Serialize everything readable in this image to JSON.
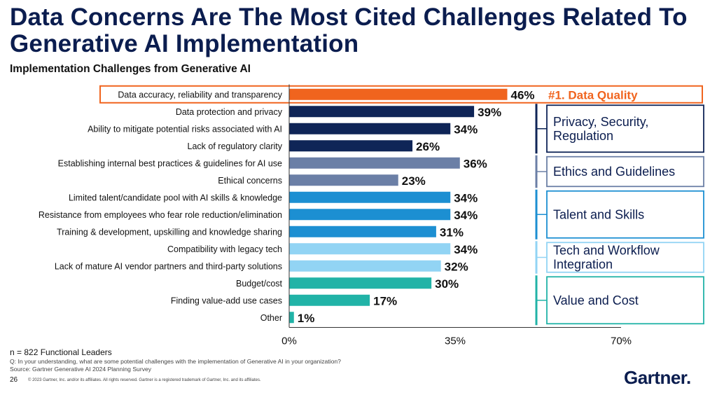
{
  "title": "Data Concerns Are The Most Cited Challenges Related To Generative AI Implementation",
  "subtitle": "Implementation Challenges from Generative AI",
  "chart_data": {
    "type": "bar",
    "orientation": "horizontal",
    "categories": [
      "Data accuracy, reliability and transparency",
      "Data protection and privacy",
      "Ability to mitigate potential risks associated with AI",
      "Lack of regulatory clarity",
      "Establishing internal best practices & guidelines for AI use",
      "Ethical concerns",
      "Limited talent/candidate pool with AI skills & knowledge",
      "Resistance from employees who fear role reduction/elimination",
      "Training & development, upskilling and knowledge sharing",
      "Compatibility with legacy tech",
      "Lack of mature AI vendor partners and third-party solutions",
      "Budget/cost",
      "Finding value-add use cases",
      "Other"
    ],
    "values": [
      46,
      39,
      34,
      26,
      36,
      23,
      34,
      34,
      31,
      34,
      32,
      30,
      17,
      1
    ],
    "value_labels": [
      "46%",
      "39%",
      "34%",
      "26%",
      "36%",
      "23%",
      "34%",
      "34%",
      "31%",
      "34%",
      "32%",
      "30%",
      "17%",
      "1%"
    ],
    "groups": [
      {
        "name": "#1. Data Quality",
        "color": "#f0641e",
        "rows": [
          0
        ]
      },
      {
        "name": "Privacy, Security, Regulation",
        "color": "#0f2557",
        "rows": [
          1,
          2,
          3
        ]
      },
      {
        "name": "Ethics and Guidelines",
        "color": "#6b7fa6",
        "rows": [
          4,
          5
        ]
      },
      {
        "name": "Talent and Skills",
        "color": "#1c8fd2",
        "rows": [
          6,
          7,
          8
        ]
      },
      {
        "name": "Tech and Workflow Integration",
        "color": "#92d4f4",
        "rows": [
          9,
          10
        ]
      },
      {
        "name": "Value and Cost",
        "color": "#21b3a7",
        "rows": [
          11,
          12,
          13
        ]
      }
    ],
    "xlim": [
      0,
      70
    ],
    "xticks": [
      0,
      35,
      70
    ],
    "xtick_labels": [
      "0%",
      "35%",
      "70%"
    ],
    "highlight_label": "#1. Data Quality"
  },
  "footer": {
    "n": "n = 822 Functional Leaders",
    "question": "Q: In your understanding, what are some potential challenges with the implementation of Generative AI in your organization?",
    "source": "Source: Gartner Generative AI 2024 Planning Survey",
    "page": "26",
    "copyright": "© 2023 Gartner, Inc. and/or its affiliates. All rights reserved. Gartner is a registered trademark of Gartner, Inc. and its affiliates."
  },
  "brand": "Gartner",
  "brand_mark": "."
}
